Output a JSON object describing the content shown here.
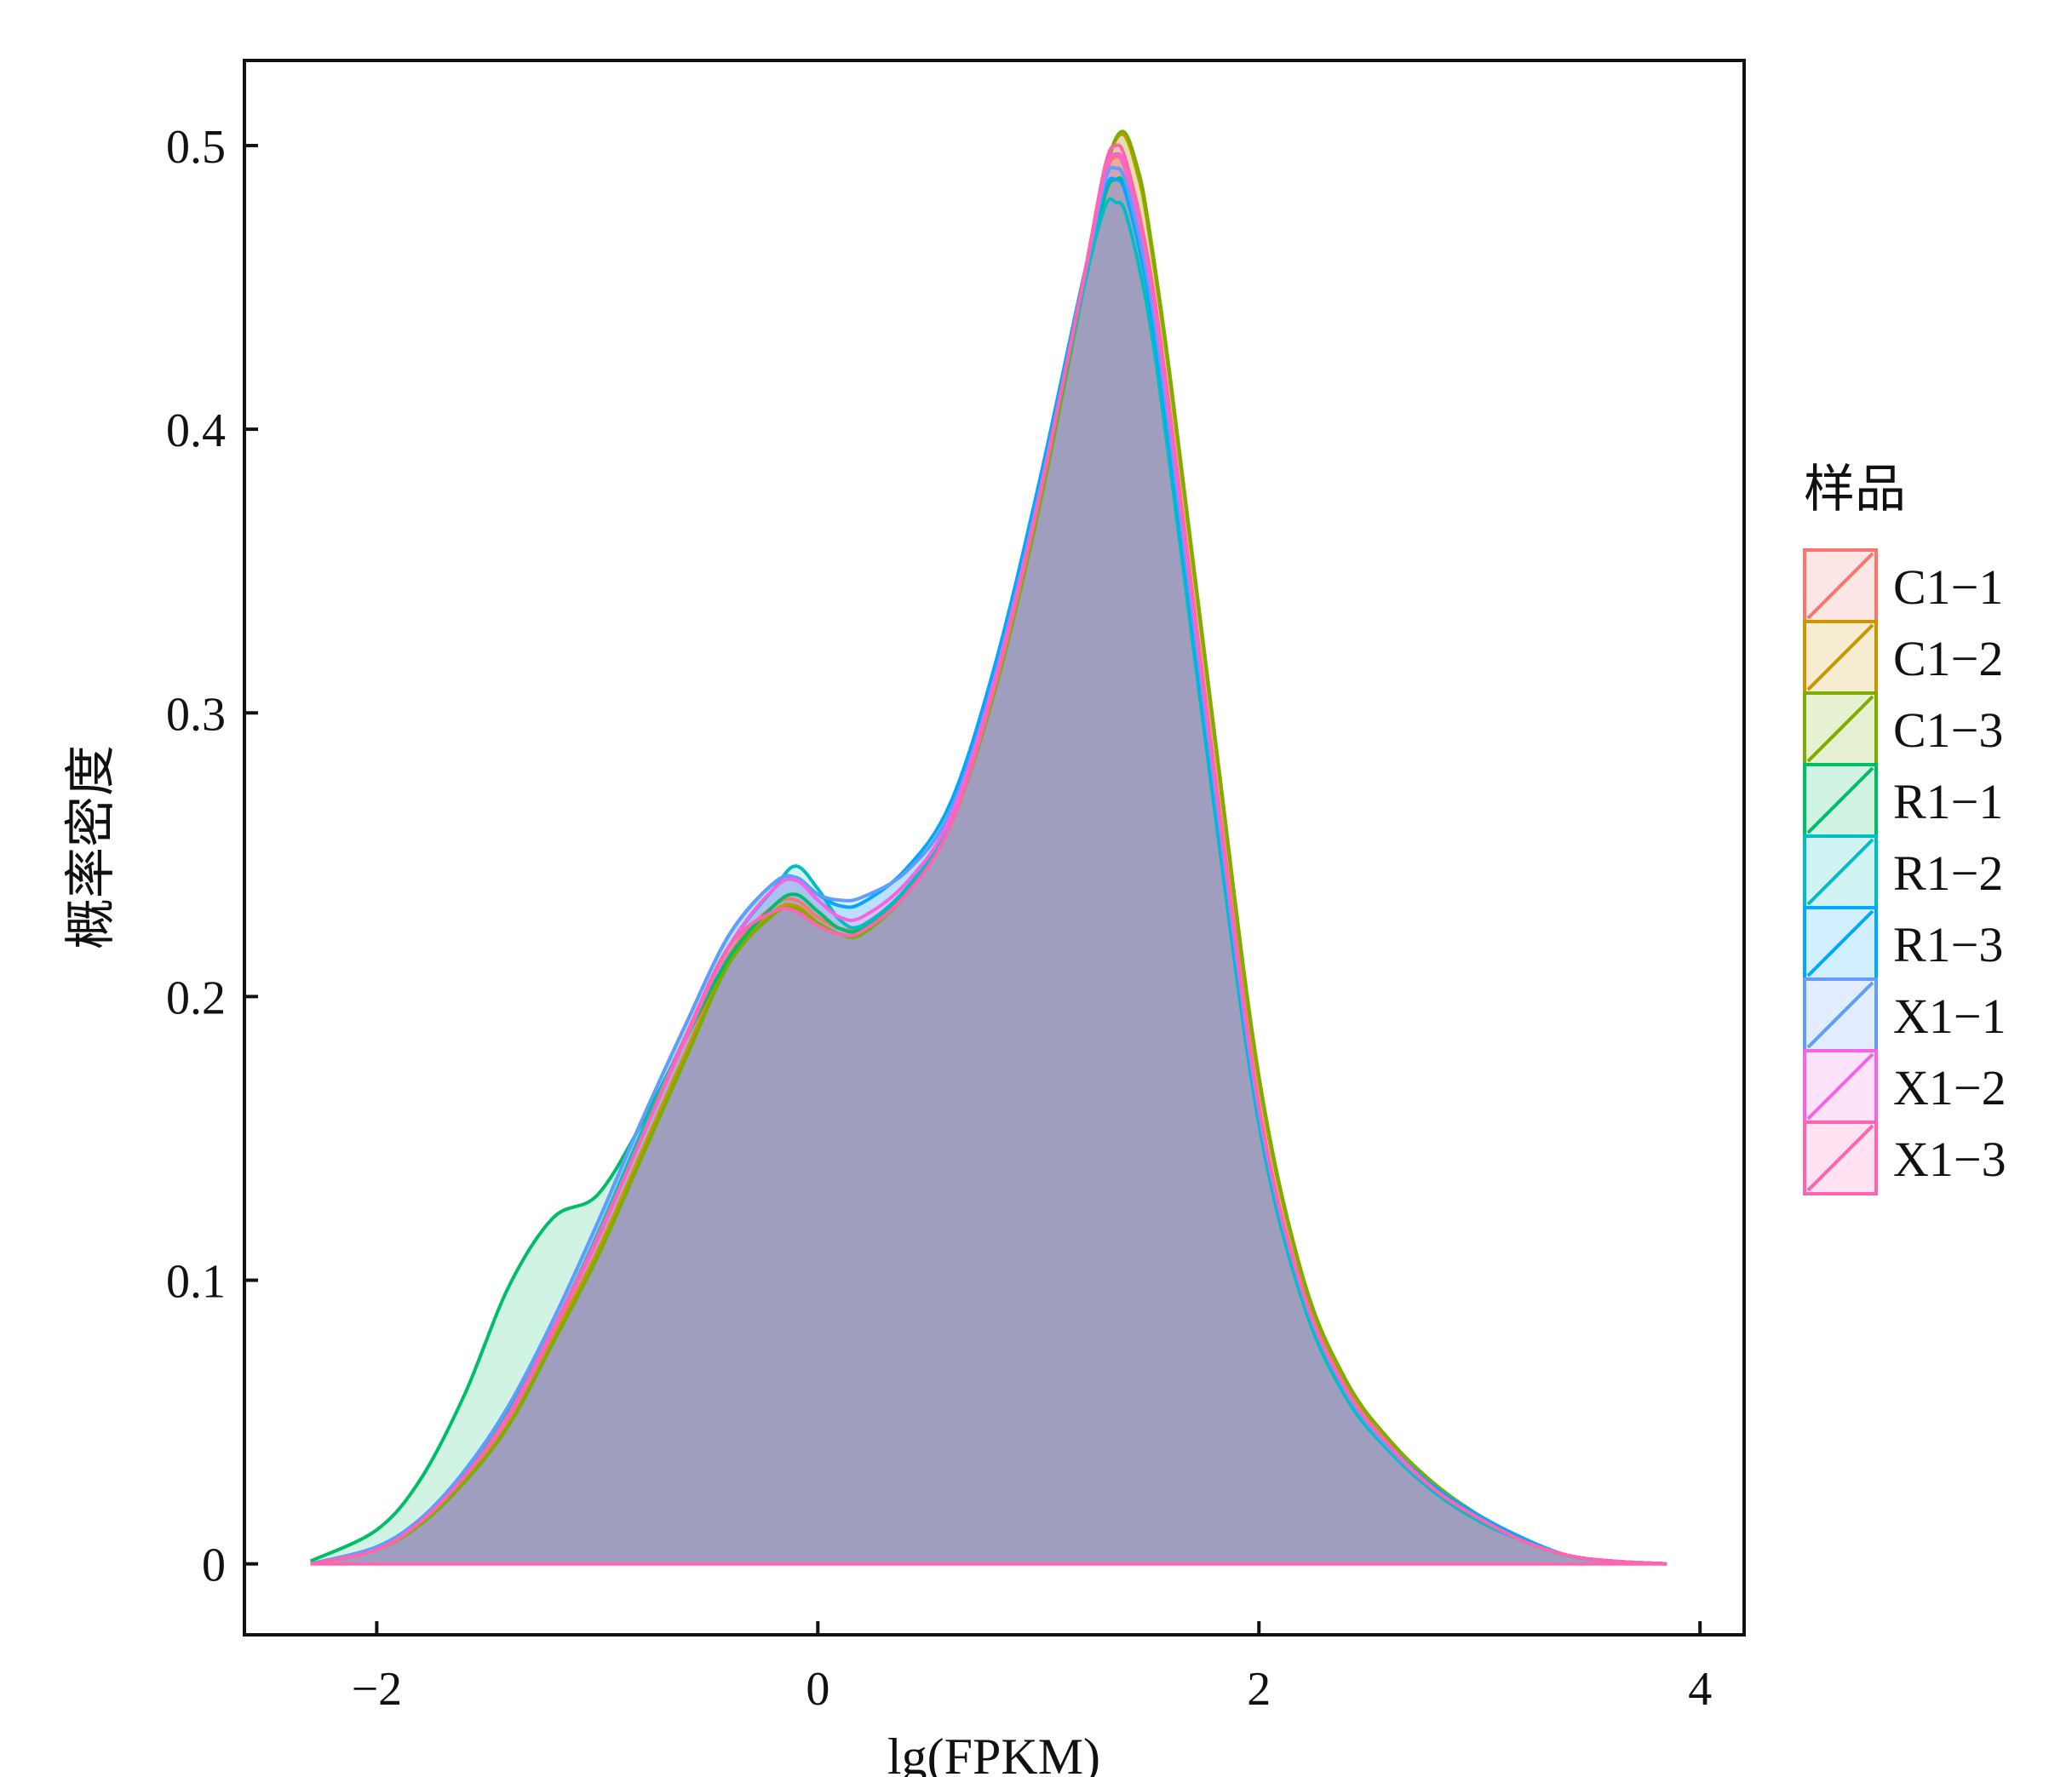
{
  "chart_data": {
    "type": "area",
    "title": "",
    "xlabel": "lg(FPKM)",
    "ylabel": "概率密度",
    "xlim": [
      -2.6,
      4.2
    ],
    "ylim": [
      -0.025,
      0.53
    ],
    "xticks": [
      -2,
      0,
      2,
      4
    ],
    "xtick_labels": [
      "−2",
      "0",
      "2",
      "4"
    ],
    "yticks": [
      0,
      0.1,
      0.2,
      0.3,
      0.4,
      0.5
    ],
    "ytick_labels": [
      "0",
      "0.1",
      "0.2",
      "0.3",
      "0.4",
      "0.5"
    ],
    "grid": false,
    "legend": {
      "title": "样品",
      "placement": "right"
    },
    "series": [
      {
        "name": "C1−1",
        "color": "#F8766D",
        "x": [
          -2.3,
          -2.0,
          -1.8,
          -1.6,
          -1.4,
          -1.2,
          -1.0,
          -0.8,
          -0.6,
          -0.4,
          -0.2,
          -0.1,
          0.0,
          0.1,
          0.2,
          0.4,
          0.6,
          0.8,
          1.0,
          1.2,
          1.3,
          1.35,
          1.4,
          1.5,
          1.6,
          1.8,
          2.0,
          2.2,
          2.4,
          2.6,
          2.8,
          3.0,
          3.2,
          3.4,
          3.6,
          3.85
        ],
        "y": [
          0.0,
          0.005,
          0.015,
          0.03,
          0.05,
          0.08,
          0.11,
          0.145,
          0.18,
          0.215,
          0.232,
          0.234,
          0.228,
          0.224,
          0.225,
          0.238,
          0.262,
          0.31,
          0.375,
          0.45,
          0.488,
          0.496,
          0.49,
          0.455,
          0.4,
          0.275,
          0.16,
          0.095,
          0.06,
          0.04,
          0.026,
          0.016,
          0.008,
          0.003,
          0.001,
          0.0
        ]
      },
      {
        "name": "C1−2",
        "color": "#CD9600",
        "x": [
          -2.3,
          -2.0,
          -1.8,
          -1.6,
          -1.4,
          -1.2,
          -1.0,
          -0.8,
          -0.6,
          -0.4,
          -0.2,
          -0.1,
          0.0,
          0.1,
          0.2,
          0.4,
          0.6,
          0.8,
          1.0,
          1.2,
          1.3,
          1.38,
          1.45,
          1.5,
          1.6,
          1.8,
          2.0,
          2.2,
          2.4,
          2.6,
          2.8,
          3.0,
          3.2,
          3.4,
          3.6,
          3.85
        ],
        "y": [
          0.0,
          0.005,
          0.015,
          0.03,
          0.05,
          0.08,
          0.11,
          0.145,
          0.18,
          0.213,
          0.23,
          0.232,
          0.226,
          0.222,
          0.223,
          0.237,
          0.261,
          0.308,
          0.372,
          0.448,
          0.49,
          0.504,
          0.49,
          0.47,
          0.415,
          0.29,
          0.17,
          0.1,
          0.063,
          0.042,
          0.027,
          0.016,
          0.008,
          0.003,
          0.001,
          0.0
        ]
      },
      {
        "name": "C1−3",
        "color": "#7CAE00",
        "x": [
          -2.3,
          -2.0,
          -1.8,
          -1.6,
          -1.4,
          -1.2,
          -1.0,
          -0.8,
          -0.6,
          -0.4,
          -0.2,
          -0.1,
          0.0,
          0.1,
          0.2,
          0.4,
          0.6,
          0.8,
          1.0,
          1.2,
          1.3,
          1.38,
          1.45,
          1.5,
          1.6,
          1.8,
          2.0,
          2.2,
          2.4,
          2.6,
          2.8,
          3.0,
          3.2,
          3.4,
          3.6,
          3.85
        ],
        "y": [
          0.0,
          0.005,
          0.014,
          0.029,
          0.049,
          0.078,
          0.108,
          0.143,
          0.178,
          0.212,
          0.229,
          0.231,
          0.226,
          0.222,
          0.222,
          0.236,
          0.26,
          0.307,
          0.371,
          0.448,
          0.49,
          0.505,
          0.492,
          0.472,
          0.417,
          0.292,
          0.172,
          0.101,
          0.064,
          0.043,
          0.028,
          0.017,
          0.008,
          0.003,
          0.001,
          0.0
        ]
      },
      {
        "name": "R1−1",
        "color": "#00BE67",
        "x": [
          -2.3,
          -2.0,
          -1.8,
          -1.6,
          -1.4,
          -1.2,
          -1.0,
          -0.8,
          -0.6,
          -0.4,
          -0.2,
          -0.1,
          0.0,
          0.1,
          0.2,
          0.4,
          0.6,
          0.8,
          1.0,
          1.2,
          1.3,
          1.35,
          1.4,
          1.5,
          1.6,
          1.8,
          2.0,
          2.2,
          2.4,
          2.6,
          2.8,
          3.0,
          3.2,
          3.4,
          3.6,
          3.85
        ],
        "y": [
          0.001,
          0.012,
          0.03,
          0.06,
          0.098,
          0.122,
          0.13,
          0.155,
          0.185,
          0.214,
          0.232,
          0.236,
          0.23,
          0.224,
          0.224,
          0.237,
          0.261,
          0.31,
          0.374,
          0.448,
          0.482,
          0.488,
          0.484,
          0.45,
          0.395,
          0.272,
          0.158,
          0.094,
          0.06,
          0.04,
          0.026,
          0.016,
          0.008,
          0.003,
          0.001,
          0.0
        ]
      },
      {
        "name": "R1−2",
        "color": "#00BFC4",
        "x": [
          -2.3,
          -2.0,
          -1.8,
          -1.6,
          -1.4,
          -1.2,
          -1.0,
          -0.8,
          -0.6,
          -0.4,
          -0.2,
          -0.1,
          0.0,
          0.1,
          0.2,
          0.4,
          0.6,
          0.8,
          1.0,
          1.2,
          1.3,
          1.35,
          1.4,
          1.5,
          1.6,
          1.8,
          2.0,
          2.2,
          2.4,
          2.6,
          2.8,
          3.0,
          3.2,
          3.4,
          3.6,
          3.85
        ],
        "y": [
          0.0,
          0.006,
          0.016,
          0.032,
          0.054,
          0.083,
          0.116,
          0.152,
          0.186,
          0.218,
          0.238,
          0.246,
          0.238,
          0.227,
          0.225,
          0.238,
          0.262,
          0.31,
          0.376,
          0.448,
          0.478,
          0.48,
          0.475,
          0.44,
          0.385,
          0.265,
          0.155,
          0.092,
          0.058,
          0.039,
          0.025,
          0.015,
          0.008,
          0.003,
          0.001,
          0.0
        ]
      },
      {
        "name": "R1−3",
        "color": "#00A9FF",
        "x": [
          -2.3,
          -2.0,
          -1.8,
          -1.6,
          -1.4,
          -1.2,
          -1.0,
          -0.8,
          -0.6,
          -0.4,
          -0.2,
          -0.1,
          0.0,
          0.1,
          0.2,
          0.4,
          0.6,
          0.8,
          1.0,
          1.2,
          1.3,
          1.35,
          1.4,
          1.5,
          1.6,
          1.8,
          2.0,
          2.2,
          2.4,
          2.6,
          2.8,
          3.0,
          3.2,
          3.4,
          3.6,
          3.85
        ],
        "y": [
          0.0,
          0.006,
          0.016,
          0.033,
          0.056,
          0.086,
          0.12,
          0.156,
          0.19,
          0.222,
          0.24,
          0.242,
          0.236,
          0.232,
          0.233,
          0.245,
          0.268,
          0.316,
          0.38,
          0.452,
          0.484,
          0.488,
          0.482,
          0.447,
          0.392,
          0.27,
          0.158,
          0.095,
          0.06,
          0.041,
          0.027,
          0.017,
          0.009,
          0.003,
          0.001,
          0.0
        ]
      },
      {
        "name": "X1−1",
        "color": "#619CFF",
        "x": [
          -2.3,
          -2.0,
          -1.8,
          -1.6,
          -1.4,
          -1.2,
          -1.0,
          -0.8,
          -0.6,
          -0.4,
          -0.2,
          -0.1,
          0.0,
          0.1,
          0.2,
          0.4,
          0.6,
          0.8,
          1.0,
          1.2,
          1.3,
          1.35,
          1.4,
          1.5,
          1.6,
          1.8,
          2.0,
          2.2,
          2.4,
          2.6,
          2.8,
          3.0,
          3.2,
          3.4,
          3.6,
          3.85
        ],
        "y": [
          0.0,
          0.006,
          0.016,
          0.033,
          0.056,
          0.086,
          0.12,
          0.156,
          0.19,
          0.222,
          0.24,
          0.242,
          0.236,
          0.234,
          0.235,
          0.244,
          0.265,
          0.312,
          0.376,
          0.45,
          0.487,
          0.492,
          0.486,
          0.451,
          0.396,
          0.273,
          0.159,
          0.095,
          0.06,
          0.04,
          0.026,
          0.016,
          0.008,
          0.003,
          0.001,
          0.0
        ]
      },
      {
        "name": "X1−2",
        "color": "#F564E3",
        "x": [
          -2.3,
          -2.0,
          -1.8,
          -1.6,
          -1.4,
          -1.2,
          -1.0,
          -0.8,
          -0.6,
          -0.4,
          -0.2,
          -0.1,
          0.0,
          0.1,
          0.2,
          0.4,
          0.6,
          0.8,
          1.0,
          1.2,
          1.3,
          1.35,
          1.4,
          1.5,
          1.6,
          1.8,
          2.0,
          2.2,
          2.4,
          2.6,
          2.8,
          3.0,
          3.2,
          3.4,
          3.6,
          3.85
        ],
        "y": [
          0.0,
          0.005,
          0.015,
          0.031,
          0.052,
          0.082,
          0.114,
          0.15,
          0.185,
          0.218,
          0.238,
          0.241,
          0.234,
          0.228,
          0.228,
          0.24,
          0.263,
          0.311,
          0.375,
          0.451,
          0.49,
          0.497,
          0.491,
          0.456,
          0.401,
          0.277,
          0.161,
          0.096,
          0.061,
          0.041,
          0.026,
          0.016,
          0.008,
          0.003,
          0.001,
          0.0
        ]
      },
      {
        "name": "X1−3",
        "color": "#FF64B0",
        "x": [
          -2.3,
          -2.0,
          -1.8,
          -1.6,
          -1.4,
          -1.2,
          -1.0,
          -0.8,
          -0.6,
          -0.4,
          -0.2,
          -0.1,
          0.0,
          0.1,
          0.2,
          0.4,
          0.6,
          0.8,
          1.0,
          1.2,
          1.3,
          1.35,
          1.4,
          1.5,
          1.6,
          1.8,
          2.0,
          2.2,
          2.4,
          2.6,
          2.8,
          3.0,
          3.2,
          3.4,
          3.6,
          3.85
        ],
        "y": [
          0.0,
          0.005,
          0.015,
          0.031,
          0.053,
          0.083,
          0.115,
          0.15,
          0.186,
          0.218,
          0.23,
          0.23,
          0.225,
          0.222,
          0.223,
          0.236,
          0.26,
          0.309,
          0.374,
          0.451,
          0.492,
          0.5,
          0.494,
          0.459,
          0.404,
          0.279,
          0.162,
          0.096,
          0.061,
          0.041,
          0.026,
          0.016,
          0.008,
          0.003,
          0.001,
          0.0
        ]
      }
    ]
  }
}
